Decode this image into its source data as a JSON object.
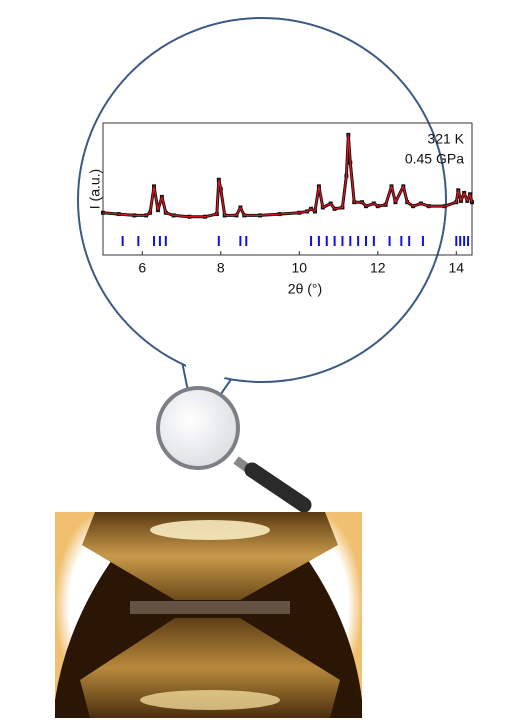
{
  "chart_data": {
    "type": "line",
    "xlabel": "2θ (°)",
    "ylabel": "I (a.u.)",
    "annotations": [
      "321 K",
      "0.45 GPa"
    ],
    "xlim": [
      5.0,
      14.4
    ],
    "xticks": [
      6,
      8,
      10,
      12,
      14
    ],
    "ylim": [
      0,
      100
    ],
    "x": [
      5.0,
      5.4,
      5.8,
      6.1,
      6.2,
      6.3,
      6.4,
      6.5,
      6.6,
      6.8,
      7.2,
      7.6,
      7.9,
      7.95,
      8.0,
      8.1,
      8.4,
      8.5,
      8.6,
      9.0,
      9.5,
      10.0,
      10.2,
      10.3,
      10.4,
      10.5,
      10.6,
      10.8,
      10.9,
      11.1,
      11.2,
      11.25,
      11.3,
      11.4,
      11.6,
      11.7,
      11.9,
      12.0,
      12.2,
      12.35,
      12.45,
      12.65,
      12.75,
      12.9,
      13.1,
      13.3,
      13.7,
      14.0,
      14.05,
      14.12,
      14.2,
      14.28,
      14.35,
      14.4
    ],
    "series": [
      {
        "color": "#111111",
        "marker": "square",
        "values": [
          32,
          31,
          30,
          30,
          32,
          52,
          34,
          44,
          32,
          30,
          29,
          29,
          31,
          57,
          50,
          30,
          30,
          36,
          30,
          30,
          31,
          32,
          33,
          35,
          33,
          52,
          36,
          39,
          35,
          36,
          60,
          91,
          70,
          40,
          40,
          37,
          39,
          37,
          38,
          52,
          40,
          52,
          40,
          37,
          39,
          37,
          37,
          40,
          49,
          41,
          47,
          41,
          46,
          40
        ]
      },
      {
        "color": "#e8141c",
        "marker": "none",
        "values": [
          32,
          31,
          30,
          30,
          32,
          52,
          34,
          44,
          32,
          30,
          29,
          29,
          31,
          57,
          50,
          30,
          30,
          36,
          30,
          30,
          31,
          32,
          33,
          35,
          33,
          52,
          36,
          39,
          35,
          36,
          60,
          91,
          70,
          40,
          40,
          37,
          39,
          37,
          38,
          52,
          40,
          52,
          40,
          37,
          39,
          37,
          37,
          40,
          49,
          41,
          47,
          41,
          46,
          40
        ]
      }
    ],
    "reflections": {
      "color": "#1010e0",
      "x": [
        5.5,
        5.9,
        6.3,
        6.45,
        6.6,
        7.95,
        8.5,
        8.65,
        10.3,
        10.5,
        10.7,
        10.9,
        11.1,
        11.3,
        11.5,
        11.7,
        11.9,
        12.3,
        12.6,
        12.8,
        13.15,
        14.0,
        14.1,
        14.2,
        14.3
      ]
    }
  }
}
